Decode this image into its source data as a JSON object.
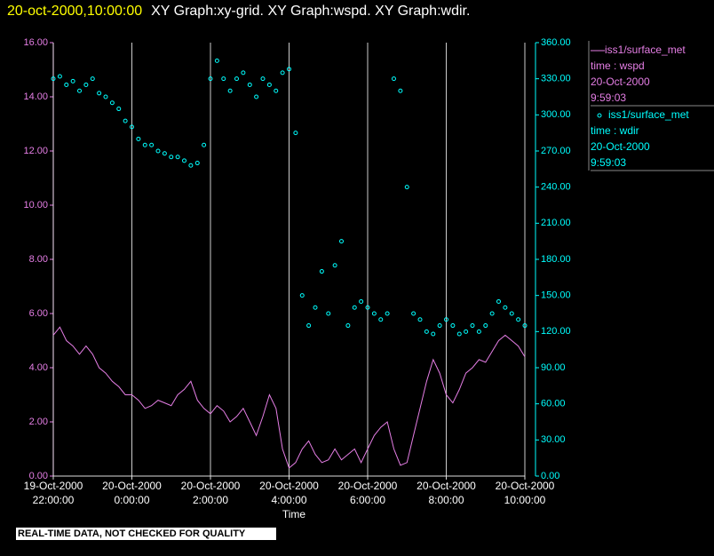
{
  "chart_data": {
    "type": "xy",
    "title": "20-oct-2000,10:00:00",
    "subtitle": "XY Graph:xy-grid.  XY Graph:wspd.  XY Graph:wdir.",
    "xlabel": "Time",
    "note": "REAL-TIME DATA, NOT CHECKED FOR QUALITY",
    "grid": true,
    "xlim": [
      "2000-10-19 22:00",
      "2000-10-20 10:00"
    ],
    "xticks": [
      {
        "value": "2000-10-19 22:00",
        "label": [
          "19-Oct-2000",
          "22:00:00"
        ]
      },
      {
        "value": "2000-10-20 00:00",
        "label": [
          "20-Oct-2000",
          "0:00:00"
        ]
      },
      {
        "value": "2000-10-20 02:00",
        "label": [
          "20-Oct-2000",
          "2:00:00"
        ]
      },
      {
        "value": "2000-10-20 04:00",
        "label": [
          "20-Oct-2000",
          "4:00:00"
        ]
      },
      {
        "value": "2000-10-20 06:00",
        "label": [
          "20-Oct-2000",
          "6:00:00"
        ]
      },
      {
        "value": "2000-10-20 08:00",
        "label": [
          "20-Oct-2000",
          "8:00:00"
        ]
      },
      {
        "value": "2000-10-20 10:00",
        "label": [
          "20-Oct-2000",
          "10:00:00"
        ]
      }
    ],
    "ylim": [
      0,
      16
    ],
    "yticks": [
      {
        "value": 0,
        "label": "0.00"
      },
      {
        "value": 2,
        "label": "2.00"
      },
      {
        "value": 4,
        "label": "4.00"
      },
      {
        "value": 6,
        "label": "6.00"
      },
      {
        "value": 8,
        "label": "8.00"
      },
      {
        "value": 10,
        "label": "10.00"
      },
      {
        "value": 12,
        "label": "12.00"
      },
      {
        "value": 14,
        "label": "14.00"
      },
      {
        "value": 16,
        "label": "16.00"
      }
    ],
    "y2lim": [
      0,
      360
    ],
    "y2ticks": [
      {
        "value": 0,
        "label": "0.00"
      },
      {
        "value": 30,
        "label": "30.00"
      },
      {
        "value": 60,
        "label": "60.00"
      },
      {
        "value": 90,
        "label": "90.00"
      },
      {
        "value": 120,
        "label": "120.00"
      },
      {
        "value": 150,
        "label": "150.00"
      },
      {
        "value": 180,
        "label": "180.00"
      },
      {
        "value": 210,
        "label": "210.00"
      },
      {
        "value": 240,
        "label": "240.00"
      },
      {
        "value": 270,
        "label": "270.00"
      },
      {
        "value": 300,
        "label": "300.00"
      },
      {
        "value": 330,
        "label": "330.00"
      },
      {
        "value": 360,
        "label": "360.00"
      }
    ],
    "x": [
      "2000-10-19 22:00",
      "2000-10-19 22:10",
      "2000-10-19 22:20",
      "2000-10-19 22:30",
      "2000-10-19 22:40",
      "2000-10-19 22:50",
      "2000-10-19 23:00",
      "2000-10-19 23:10",
      "2000-10-19 23:20",
      "2000-10-19 23:30",
      "2000-10-19 23:40",
      "2000-10-19 23:50",
      "2000-10-20 00:00",
      "2000-10-20 00:10",
      "2000-10-20 00:20",
      "2000-10-20 00:30",
      "2000-10-20 00:40",
      "2000-10-20 00:50",
      "2000-10-20 01:00",
      "2000-10-20 01:10",
      "2000-10-20 01:20",
      "2000-10-20 01:30",
      "2000-10-20 01:40",
      "2000-10-20 01:50",
      "2000-10-20 02:00",
      "2000-10-20 02:10",
      "2000-10-20 02:20",
      "2000-10-20 02:30",
      "2000-10-20 02:40",
      "2000-10-20 02:50",
      "2000-10-20 03:00",
      "2000-10-20 03:10",
      "2000-10-20 03:20",
      "2000-10-20 03:30",
      "2000-10-20 03:40",
      "2000-10-20 03:50",
      "2000-10-20 04:00",
      "2000-10-20 04:10",
      "2000-10-20 04:20",
      "2000-10-20 04:30",
      "2000-10-20 04:40",
      "2000-10-20 04:50",
      "2000-10-20 05:00",
      "2000-10-20 05:10",
      "2000-10-20 05:20",
      "2000-10-20 05:30",
      "2000-10-20 05:40",
      "2000-10-20 05:50",
      "2000-10-20 06:00",
      "2000-10-20 06:10",
      "2000-10-20 06:20",
      "2000-10-20 06:30",
      "2000-10-20 06:40",
      "2000-10-20 06:50",
      "2000-10-20 07:00",
      "2000-10-20 07:10",
      "2000-10-20 07:20",
      "2000-10-20 07:30",
      "2000-10-20 07:40",
      "2000-10-20 07:50",
      "2000-10-20 08:00",
      "2000-10-20 08:10",
      "2000-10-20 08:20",
      "2000-10-20 08:30",
      "2000-10-20 08:40",
      "2000-10-20 08:50",
      "2000-10-20 09:00",
      "2000-10-20 09:10",
      "2000-10-20 09:20",
      "2000-10-20 09:30",
      "2000-10-20 09:40",
      "2000-10-20 09:50",
      "2000-10-20 10:00"
    ],
    "series": [
      {
        "name": "iss1/surface_met",
        "legend_detail": [
          "time : wspd",
          "20-Oct-2000",
          "9:59:03"
        ],
        "kind": "line",
        "color": "#e57ee5",
        "values": [
          5.2,
          5.5,
          5.0,
          4.8,
          4.5,
          4.8,
          4.5,
          4.0,
          3.8,
          3.5,
          3.3,
          3.0,
          3.0,
          2.8,
          2.5,
          2.6,
          2.8,
          2.7,
          2.6,
          3.0,
          3.2,
          3.5,
          2.8,
          2.5,
          2.3,
          2.6,
          2.4,
          2.0,
          2.2,
          2.5,
          2.0,
          1.5,
          2.2,
          3.0,
          2.5,
          1.0,
          0.3,
          0.5,
          1.0,
          1.3,
          0.8,
          0.5,
          0.6,
          1.0,
          0.6,
          0.8,
          1.0,
          0.5,
          1.0,
          1.5,
          1.8,
          2.0,
          1.0,
          0.4,
          0.5,
          1.5,
          2.5,
          3.5,
          4.3,
          3.8,
          3.0,
          2.7,
          3.2,
          3.8,
          4.0,
          4.3,
          4.2,
          4.6,
          5.0,
          5.2,
          5.0,
          4.8,
          4.4
        ]
      },
      {
        "name": "iss1/surface_met",
        "legend_detail": [
          "time : wdir",
          "20-Oct-2000",
          "9:59:03"
        ],
        "kind": "scatter",
        "axis": "y2",
        "color": "#00ffff",
        "values": [
          330,
          332,
          325,
          328,
          320,
          325,
          330,
          318,
          315,
          310,
          305,
          295,
          290,
          280,
          275,
          275,
          270,
          268,
          265,
          265,
          262,
          258,
          260,
          275,
          330,
          345,
          330,
          320,
          330,
          335,
          325,
          315,
          330,
          325,
          320,
          335,
          338,
          285,
          150,
          125,
          140,
          170,
          135,
          175,
          195,
          125,
          140,
          145,
          140,
          135,
          130,
          135,
          330,
          320,
          240,
          135,
          130,
          120,
          118,
          125,
          130,
          125,
          118,
          120,
          125,
          120,
          125,
          135,
          145,
          140,
          135,
          130,
          125
        ]
      }
    ]
  }
}
